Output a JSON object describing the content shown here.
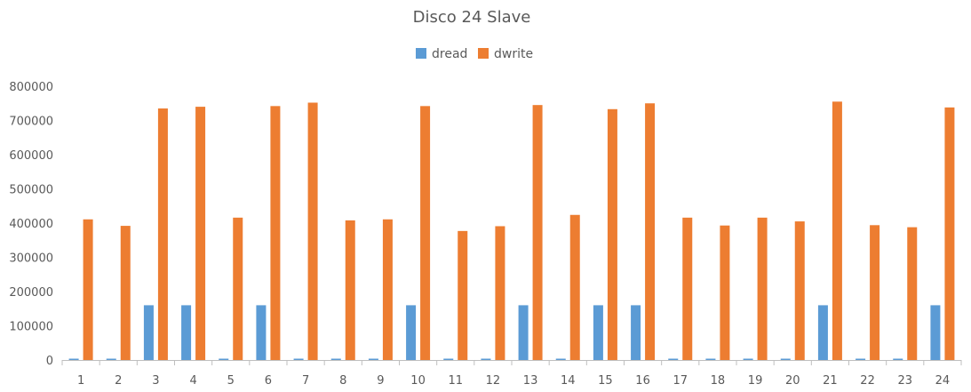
{
  "chart_data": {
    "type": "bar",
    "title": "Disco 24 Slave",
    "xlabel": "",
    "ylabel": "",
    "ylim": [
      0,
      800000
    ],
    "yticks": [
      0,
      100000,
      200000,
      300000,
      400000,
      500000,
      600000,
      700000,
      800000
    ],
    "grid": false,
    "legend": "top",
    "categories": [
      "1",
      "2",
      "3",
      "4",
      "5",
      "6",
      "7",
      "8",
      "9",
      "10",
      "11",
      "12",
      "13",
      "14",
      "15",
      "16",
      "17",
      "18",
      "19",
      "20",
      "21",
      "22",
      "23",
      "24"
    ],
    "series": [
      {
        "name": "dread",
        "color": "#5b9bd5",
        "values": [
          0,
          0,
          160000,
          160000,
          0,
          160000,
          0,
          0,
          0,
          160000,
          0,
          0,
          160000,
          0,
          160000,
          160000,
          0,
          0,
          0,
          0,
          160000,
          0,
          0,
          160000
        ]
      },
      {
        "name": "dwrite",
        "color": "#ed7d31",
        "values": [
          411000,
          392000,
          735000,
          740000,
          416000,
          742000,
          752000,
          408000,
          411000,
          742000,
          377000,
          391000,
          745000,
          424000,
          733000,
          750000,
          416000,
          393000,
          416000,
          405000,
          755000,
          394000,
          388000,
          738000
        ]
      }
    ]
  }
}
